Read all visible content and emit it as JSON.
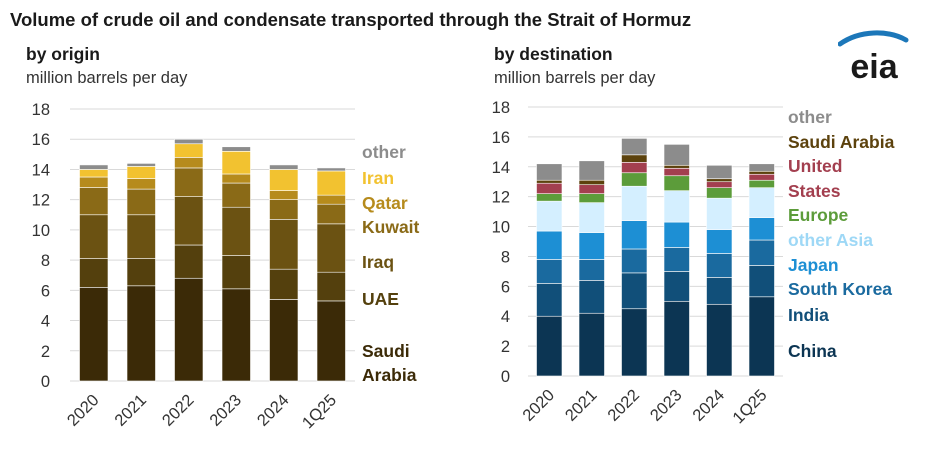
{
  "title": "Volume of crude oil and condensate transported through the Strait of Hormuz",
  "logo": {
    "text": "eia",
    "color": "#1a1a1a",
    "swoosh": "#1c77b9"
  },
  "chart_data": [
    {
      "type": "bar",
      "stacked": true,
      "title": "by origin",
      "ylabel": "million barrels per day",
      "ylim": [
        0,
        18
      ],
      "yticks": [
        "0",
        "2",
        "4",
        "6",
        "8",
        "10",
        "12",
        "14",
        "16",
        "18"
      ],
      "categories": [
        "2020",
        "2021",
        "2022",
        "2023",
        "2024",
        "1Q25"
      ],
      "grid": true,
      "legend_position": "right",
      "series": [
        {
          "name": "Saudi Arabia",
          "label_lines": [
            "Saudi",
            "Arabia"
          ],
          "color": "#3b2a07",
          "label_color": "#3b2a07",
          "values": [
            6.2,
            6.3,
            6.8,
            6.1,
            5.4,
            5.3
          ]
        },
        {
          "name": "UAE",
          "label_lines": [
            "UAE"
          ],
          "color": "#54400d",
          "label_color": "#54400d",
          "values": [
            1.9,
            1.8,
            2.2,
            2.2,
            2.0,
            1.9
          ]
        },
        {
          "name": "Iraq",
          "label_lines": [
            "Iraq"
          ],
          "color": "#6b5212",
          "label_color": "#6b5212",
          "values": [
            2.9,
            2.9,
            3.2,
            3.2,
            3.3,
            3.2
          ]
        },
        {
          "name": "Kuwait",
          "label_lines": [
            "Kuwait"
          ],
          "color": "#8a6a17",
          "label_color": "#8a6a17",
          "values": [
            1.8,
            1.7,
            1.9,
            1.6,
            1.3,
            1.3
          ]
        },
        {
          "name": "Qatar",
          "label_lines": [
            "Qatar"
          ],
          "color": "#b68b1c",
          "label_color": "#b68b1c",
          "values": [
            0.7,
            0.7,
            0.7,
            0.6,
            0.6,
            0.6
          ]
        },
        {
          "name": "Iran",
          "label_lines": [
            "Iran"
          ],
          "color": "#f2c230",
          "label_color": "#f2c230",
          "values": [
            0.5,
            0.8,
            0.9,
            1.5,
            1.4,
            1.6
          ]
        },
        {
          "name": "other",
          "label_lines": [
            "other"
          ],
          "color": "#8c8c8c",
          "label_color": "#8c8c8c",
          "values": [
            0.3,
            0.2,
            0.3,
            0.3,
            0.3,
            0.2
          ]
        }
      ]
    },
    {
      "type": "bar",
      "stacked": true,
      "title": "by destination",
      "ylabel": "million barrels per day",
      "ylim": [
        0,
        18
      ],
      "yticks": [
        "0",
        "2",
        "4",
        "6",
        "8",
        "10",
        "12",
        "14",
        "16",
        "18"
      ],
      "categories": [
        "2020",
        "2021",
        "2022",
        "2023",
        "2024",
        "1Q25"
      ],
      "grid": true,
      "legend_position": "right",
      "series": [
        {
          "name": "China",
          "label_lines": [
            "China"
          ],
          "color": "#0c3553",
          "label_color": "#0c3553",
          "values": [
            4.0,
            4.2,
            4.5,
            5.0,
            4.8,
            5.3
          ]
        },
        {
          "name": "India",
          "label_lines": [
            "India"
          ],
          "color": "#114f79",
          "label_color": "#114f79",
          "values": [
            2.2,
            2.2,
            2.4,
            2.0,
            1.8,
            2.1
          ]
        },
        {
          "name": "South Korea",
          "label_lines": [
            "South Korea"
          ],
          "color": "#1a6a9f",
          "label_color": "#1a6a9f",
          "values": [
            1.6,
            1.4,
            1.6,
            1.6,
            1.6,
            1.7
          ]
        },
        {
          "name": "Japan",
          "label_lines": [
            "Japan"
          ],
          "color": "#1d8fd4",
          "label_color": "#1d8fd4",
          "values": [
            1.9,
            1.8,
            1.9,
            1.7,
            1.6,
            1.5
          ]
        },
        {
          "name": "other Asia",
          "label_lines": [
            "other Asia"
          ],
          "color": "#d4efff",
          "label_color": "#9ed8f6",
          "values": [
            2.0,
            2.0,
            2.3,
            2.1,
            2.1,
            2.0
          ]
        },
        {
          "name": "Europe",
          "label_lines": [
            "Europe"
          ],
          "color": "#5c9c3a",
          "label_color": "#5c9c3a",
          "values": [
            0.5,
            0.6,
            0.9,
            1.0,
            0.7,
            0.5
          ]
        },
        {
          "name": "United States",
          "label_lines": [
            "United",
            "States"
          ],
          "color": "#a33f4f",
          "label_color": "#a33f4f",
          "values": [
            0.7,
            0.6,
            0.7,
            0.5,
            0.4,
            0.4
          ]
        },
        {
          "name": "Saudi Arabia",
          "label_lines": [
            "Saudi Arabia"
          ],
          "color": "#5c420d",
          "label_color": "#5c420d",
          "values": [
            0.2,
            0.3,
            0.5,
            0.2,
            0.2,
            0.2
          ]
        },
        {
          "name": "other",
          "label_lines": [
            "other"
          ],
          "color": "#8c8c8c",
          "label_color": "#8c8c8c",
          "values": [
            1.1,
            1.3,
            1.1,
            1.4,
            0.9,
            0.5
          ]
        }
      ]
    }
  ]
}
